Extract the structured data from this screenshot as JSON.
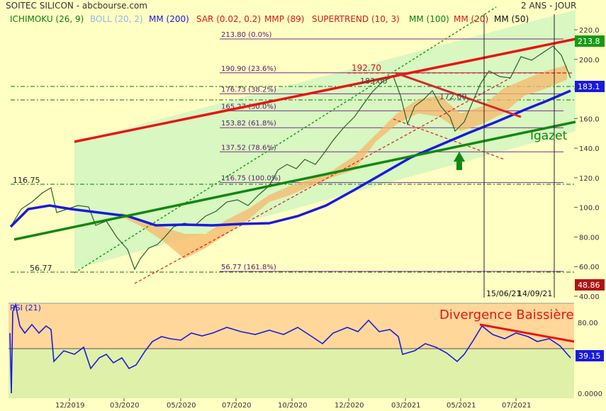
{
  "header": {
    "title": "SOITEC SILICON - abcbourse.com",
    "period": "2 ANS - JOUR"
  },
  "indicators": [
    {
      "label": "ICHIMOKU (26, 9)",
      "color": "#0f7d0f"
    },
    {
      "label": "BOLL (20, 2)",
      "color": "#8fb8ea"
    },
    {
      "label": "MM (200)",
      "color": "#1a1adc"
    },
    {
      "label": "SAR (0.02, 0.2)",
      "color": "#d81818"
    },
    {
      "label": "MMP (89)",
      "color": "#d81818"
    },
    {
      "label": "SUPERTREND (10, 3)",
      "color": "#d81818"
    },
    {
      "label": "MM (100)",
      "color": "#0f7d0f"
    },
    {
      "label": "MM (20)",
      "color": "#d81818"
    },
    {
      "label": "MM (50)",
      "color": "#111111"
    }
  ],
  "chart_data": [
    {
      "type": "line",
      "title": "SOITEC SILICON",
      "y_axis": {
        "ticks": [
          "40.00",
          "60.00",
          "80.00",
          "100.0",
          "120.0",
          "140.0",
          "160.0",
          "180.0",
          "200.0",
          "220.0"
        ],
        "ylim": [
          40,
          225
        ]
      },
      "x_axis": {
        "ticks": [
          "12/2019",
          "03/2020",
          "05/2020",
          "07/2020",
          "10/2020",
          "12/2020",
          "03/2021",
          "05/2021",
          "07/2021"
        ]
      },
      "price_badges": [
        {
          "value": "213.8",
          "color": "#159b15"
        },
        {
          "value": "183.1",
          "color": "#1a1adc"
        },
        {
          "value": "48.86",
          "color": "#b01414"
        }
      ],
      "series": [
        {
          "name": "MM (200)",
          "color": "#1a1adc",
          "x": [
            "12/2019",
            "03/2020",
            "05/2020",
            "07/2020",
            "10/2020",
            "12/2020",
            "03/2021",
            "05/2021",
            "07/2021"
          ],
          "values": [
            97,
            93,
            89,
            90,
            93,
            106,
            126,
            145,
            167
          ]
        }
      ],
      "fibonacci_levels": [
        {
          "label": "213.80  (0.0%)",
          "value": 213.8
        },
        {
          "label": "190.90  (23.6%)",
          "value": 190.9
        },
        {
          "label": "176.73  (38.2%)",
          "value": 176.73
        },
        {
          "label": "165.27  (50.0%)",
          "value": 165.27
        },
        {
          "label": "153.82  (61.8%)",
          "value": 153.82
        },
        {
          "label": "137.52  (78.6%)",
          "value": 137.52
        },
        {
          "label": "116.75  (100.0%)",
          "value": 116.75
        },
        {
          "label": "56.77  (161.8%)",
          "value": 56.77
        }
      ],
      "annotations": {
        "support_high": "116.75",
        "support_low": "56.77",
        "peak_label": "192.70",
        "level_a": "183.00",
        "level_b": "172.00",
        "pattern_text": "Igazet",
        "date_marker_1": "15/06/21",
        "date_marker_2": "14/09/21"
      }
    },
    {
      "type": "line",
      "title": "RSI (21)",
      "y_axis": {
        "ticks": [
          "0.0000",
          "40.00",
          "80.00"
        ],
        "ylim": [
          0,
          100
        ]
      },
      "current_value": "39.15",
      "annotation": "Divergence Baissière",
      "series": [
        {
          "name": "RSI (21)",
          "color": "#1a1adc",
          "x": [
            "12/2019",
            "03/2020",
            "05/2020",
            "07/2020",
            "10/2020",
            "12/2020",
            "03/2021",
            "05/2021",
            "07/2021"
          ],
          "values": [
            52,
            38,
            58,
            60,
            61,
            66,
            44,
            56,
            46
          ]
        }
      ]
    }
  ]
}
